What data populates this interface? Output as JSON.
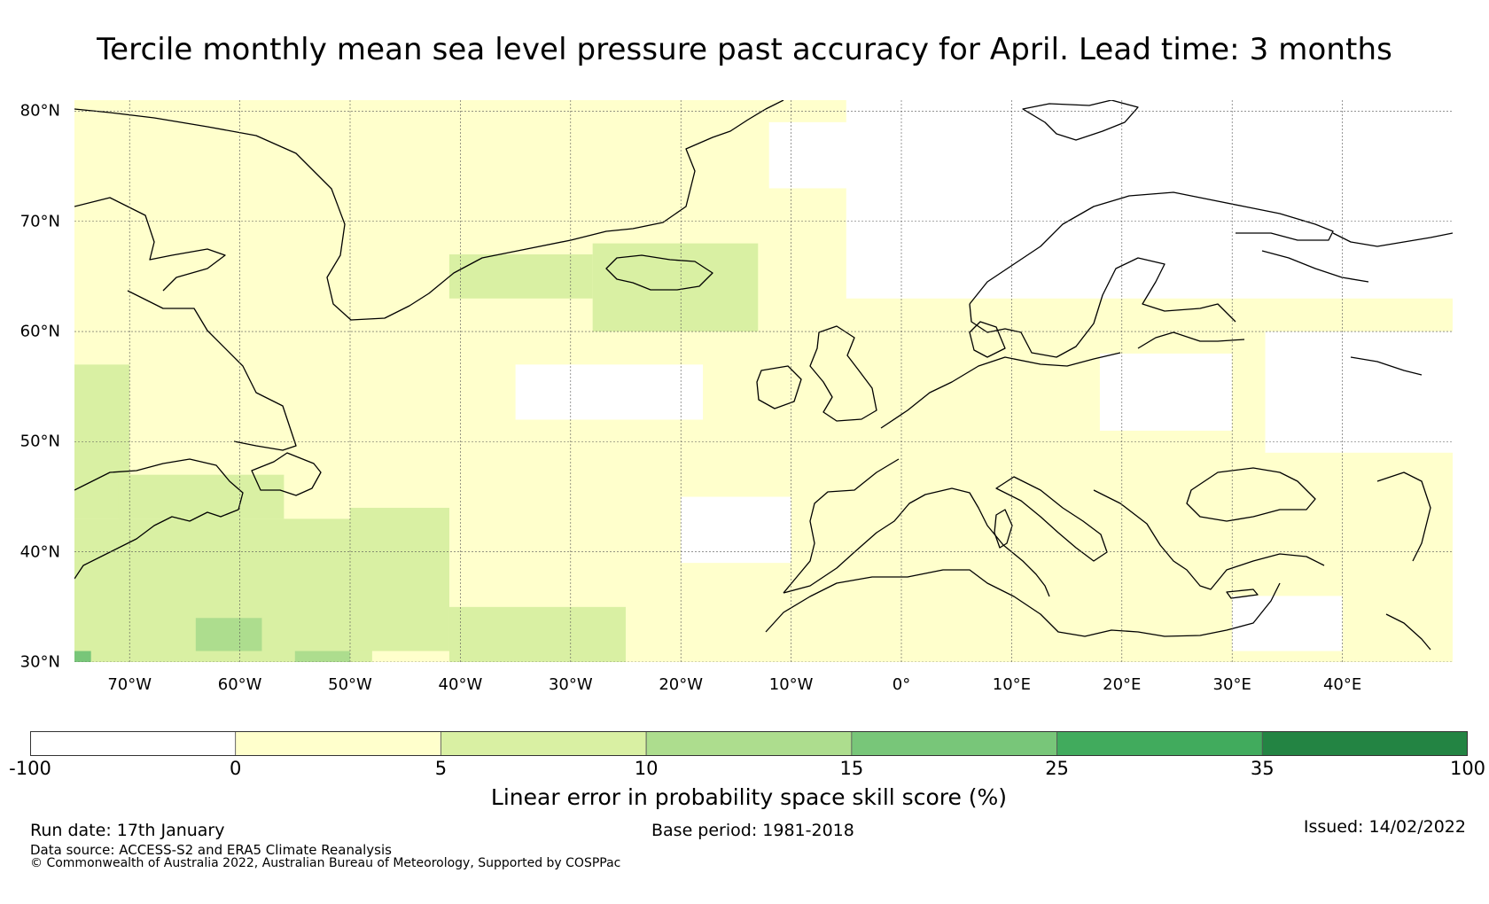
{
  "title": "Tercile monthly mean sea level pressure past accuracy for April. Lead time: 3 months",
  "map": {
    "extent": {
      "lon_min": -75,
      "lon_max": 50,
      "lat_min": 30,
      "lat_max": 81
    },
    "lat_ticks": [
      {
        "value": 80,
        "label": "80°N"
      },
      {
        "value": 70,
        "label": "70°N"
      },
      {
        "value": 60,
        "label": "60°N"
      },
      {
        "value": 50,
        "label": "50°N"
      },
      {
        "value": 40,
        "label": "40°N"
      },
      {
        "value": 30,
        "label": "30°N"
      }
    ],
    "lon_ticks": [
      {
        "value": -70,
        "label": "70°W"
      },
      {
        "value": -60,
        "label": "60°W"
      },
      {
        "value": -50,
        "label": "50°W"
      },
      {
        "value": -40,
        "label": "40°W"
      },
      {
        "value": -30,
        "label": "30°W"
      },
      {
        "value": -20,
        "label": "20°W"
      },
      {
        "value": -10,
        "label": "10°W"
      },
      {
        "value": 0,
        "label": "0°"
      },
      {
        "value": 10,
        "label": "10°E"
      },
      {
        "value": 20,
        "label": "20°E"
      },
      {
        "value": 30,
        "label": "30°E"
      },
      {
        "value": 40,
        "label": "40°E"
      }
    ],
    "background_class": "0-5",
    "regions": [
      {
        "name": "scandinavia-north-no-skill",
        "class": "-100-0",
        "lon": [
          -5,
          50
        ],
        "lat": [
          63,
          81
        ]
      },
      {
        "name": "barents-no-skill",
        "class": "-100-0",
        "lon": [
          15,
          50
        ],
        "lat": [
          72,
          81
        ]
      },
      {
        "name": "greenland-sea-no-skill",
        "class": "-100-0",
        "lon": [
          -12,
          5
        ],
        "lat": [
          73,
          79
        ]
      },
      {
        "name": "north-sea-no-skill",
        "class": "-100-0",
        "lon": [
          0,
          12
        ],
        "lat": [
          66,
          73
        ]
      },
      {
        "name": "mid-atlantic-no-skill",
        "class": "-100-0",
        "lon": [
          -35,
          -18
        ],
        "lat": [
          52,
          57
        ]
      },
      {
        "name": "iberia-west-no-skill",
        "class": "-100-0",
        "lon": [
          -20,
          -10
        ],
        "lat": [
          39,
          45
        ]
      },
      {
        "name": "russia-no-skill",
        "class": "-100-0",
        "lon": [
          33,
          50
        ],
        "lat": [
          49,
          60
        ]
      },
      {
        "name": "eastern-europe-no-skill",
        "class": "-100-0",
        "lon": [
          18,
          30
        ],
        "lat": [
          51,
          58
        ]
      },
      {
        "name": "mediterranean-no-skill",
        "class": "-100-0",
        "lon": [
          30,
          40
        ],
        "lat": [
          31,
          36
        ]
      },
      {
        "name": "iceland-skill",
        "class": "5-10",
        "lon": [
          -28,
          -13
        ],
        "lat": [
          60,
          68
        ]
      },
      {
        "name": "denmark-strait-skill",
        "class": "5-10",
        "lon": [
          -41,
          -28
        ],
        "lat": [
          63,
          67
        ]
      },
      {
        "name": "labrador-skill",
        "class": "5-10",
        "lon": [
          -75,
          -70
        ],
        "lat": [
          43,
          57
        ]
      },
      {
        "name": "us-east-coast-skill",
        "class": "5-10",
        "lon": [
          -75,
          -48
        ],
        "lat": [
          30,
          43
        ]
      },
      {
        "name": "sargasso-skill",
        "class": "5-10",
        "lon": [
          -50,
          -41
        ],
        "lat": [
          31,
          44
        ]
      },
      {
        "name": "subtropical-skill",
        "class": "5-10",
        "lon": [
          -41,
          -25
        ],
        "lat": [
          30,
          35
        ]
      },
      {
        "name": "cape-cod-skill",
        "class": "5-10",
        "lon": [
          -71,
          -56
        ],
        "lat": [
          43,
          47
        ]
      },
      {
        "name": "bermuda-higher-skill",
        "class": "10-15",
        "lon": [
          -64,
          -58
        ],
        "lat": [
          31,
          34
        ]
      },
      {
        "name": "georgia-higher-skill",
        "class": "10-15",
        "lon": [
          -55,
          -50
        ],
        "lat": [
          30,
          31
        ]
      },
      {
        "name": "florida-strong-skill",
        "class": "15-25",
        "lon": [
          -75,
          -73.5
        ],
        "lat": [
          30,
          31
        ]
      }
    ]
  },
  "colorbar": {
    "label": "Linear error in probability space skill score (%)",
    "classes": [
      {
        "id": "-100-0",
        "from": -100,
        "to": 0,
        "color": "#ffffff"
      },
      {
        "id": "0-5",
        "from": 0,
        "to": 5,
        "color": "#ffffcc"
      },
      {
        "id": "5-10",
        "from": 5,
        "to": 10,
        "color": "#d9f0a3"
      },
      {
        "id": "10-15",
        "from": 10,
        "to": 15,
        "color": "#addd8e"
      },
      {
        "id": "15-25",
        "from": 15,
        "to": 25,
        "color": "#78c679"
      },
      {
        "id": "25-35",
        "from": 25,
        "to": 35,
        "color": "#41ab5d"
      },
      {
        "id": "35-100",
        "from": 35,
        "to": 100,
        "color": "#238443"
      }
    ],
    "tick_labels": [
      "-100",
      "0",
      "5",
      "10",
      "15",
      "25",
      "35",
      "100"
    ]
  },
  "footer": {
    "run_date": "Run date: 17th January",
    "base_period": "Base period: 1981-2018",
    "issued": "Issued: 14/02/2022",
    "data_source": "Data source: ACCESS-S2 and ERA5 Climate Reanalysis",
    "copyright": "© Commonwealth of Australia 2022, Australian Bureau of Meteorology, Supported by COSPPac"
  }
}
